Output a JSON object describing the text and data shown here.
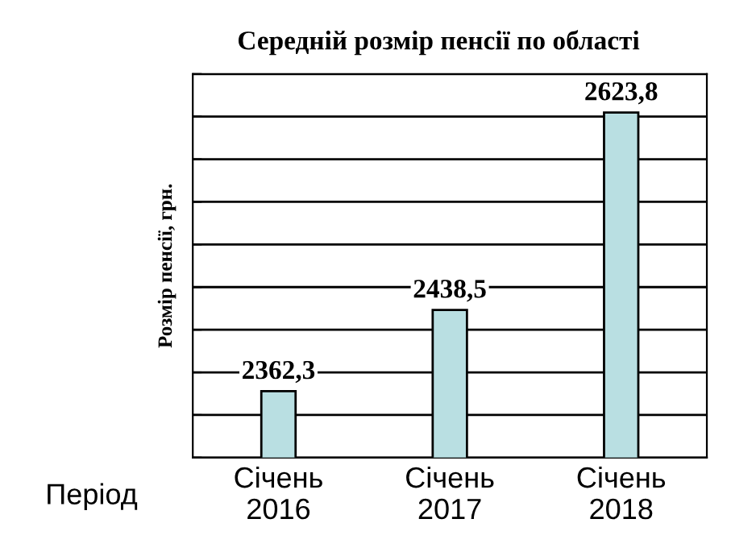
{
  "chart_data": {
    "type": "bar",
    "title": "Середній розмір пенсії по області",
    "ylabel": "Розмір пенсії, грн.",
    "categories": [
      "Січень\n2016",
      "Січень\n2017",
      "Січень\n2018"
    ],
    "values": [
      2362.3,
      2438.5,
      2623.8
    ],
    "value_labels": [
      "2362,3",
      "2438,5",
      "2623,8"
    ],
    "color": "#b9dfe2",
    "ylim": [
      2300,
      2660
    ],
    "yticks": [
      {
        "value": 2300,
        "label": null
      },
      {
        "value": 2340,
        "label": null
      },
      {
        "value": 2380,
        "label": null
      },
      {
        "value": 2420,
        "label": null
      },
      {
        "value": 2460,
        "label": null
      },
      {
        "value": 2500,
        "label": null
      },
      {
        "value": 2540,
        "label": null
      },
      {
        "value": 2580,
        "label": null
      },
      {
        "value": 2620,
        "label": null
      },
      {
        "value": 2660,
        "label": null
      }
    ],
    "grid": "y",
    "legend": false,
    "tick_labels": "x",
    "annotations": [
      "Період"
    ]
  }
}
